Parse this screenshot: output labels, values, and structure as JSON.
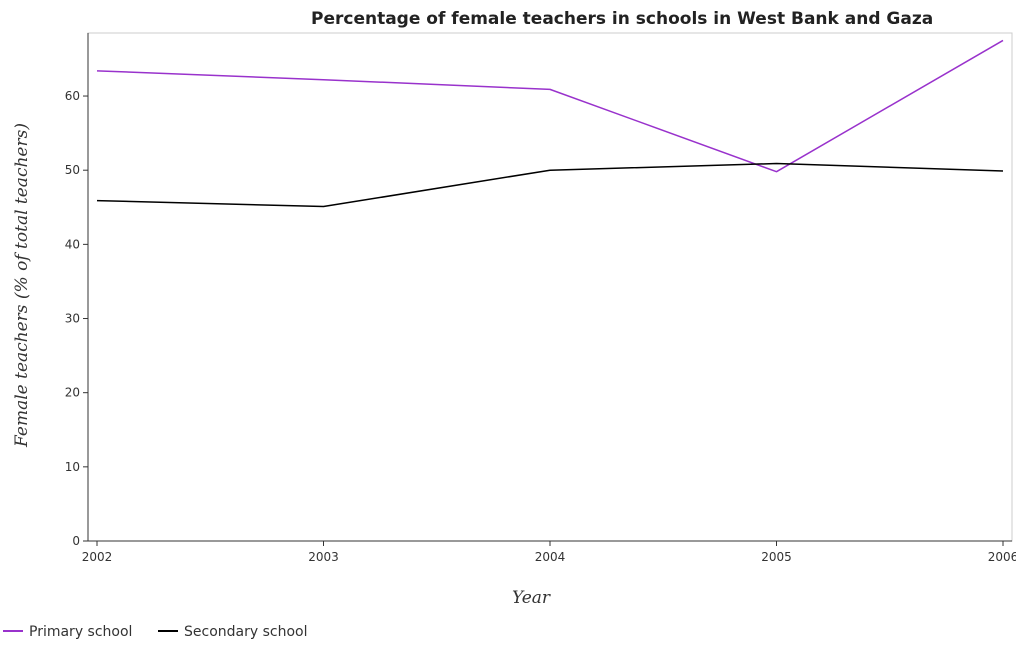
{
  "chart_data": {
    "type": "line",
    "title": "Percentage of female teachers in schools in West Bank and Gaza",
    "xlabel": "Year",
    "ylabel": "Female teachers (% of total teachers)",
    "categories": [
      "2002",
      "2003",
      "2004",
      "2005",
      "2006"
    ],
    "ylim": [
      0,
      68.5
    ],
    "yticks": [
      0,
      10,
      20,
      30,
      40,
      50,
      60
    ],
    "grid": false,
    "legend_position": "bottom-left",
    "series": [
      {
        "name": "Primary school",
        "color": "#9932cc",
        "values": [
          63.4,
          62.2,
          60.9,
          49.8,
          67.5
        ]
      },
      {
        "name": "Secondary school",
        "color": "#000000",
        "values": [
          45.9,
          45.1,
          50.0,
          50.9,
          49.9
        ]
      }
    ]
  }
}
